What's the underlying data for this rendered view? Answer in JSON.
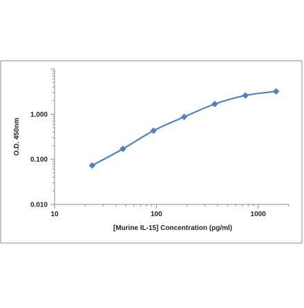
{
  "chart_data": {
    "type": "line",
    "title": "",
    "xlabel": "[Murine IL-15] Concentration (pg/ml)",
    "ylabel": "O.D. 450nm",
    "x_scale": "log",
    "y_scale": "log",
    "xlim": [
      10,
      2000
    ],
    "ylim": [
      0.01,
      10
    ],
    "x_ticks": [
      10,
      100,
      1000
    ],
    "x_tick_labels": [
      "10",
      "100",
      "1000"
    ],
    "y_ticks": [
      0.01,
      0.1,
      1
    ],
    "y_tick_labels": [
      "0.010",
      "0.100",
      "1.000"
    ],
    "grid": false,
    "legend": "none",
    "series": [
      {
        "x": [
          23.4,
          46.9,
          93.8,
          187.5,
          375,
          750,
          1500
        ],
        "y": [
          0.073,
          0.17,
          0.43,
          0.87,
          1.68,
          2.6,
          3.2
        ],
        "color": "#4f81bd",
        "marker": "diamond",
        "smooth": true
      }
    ],
    "frame_color": "#888888"
  }
}
